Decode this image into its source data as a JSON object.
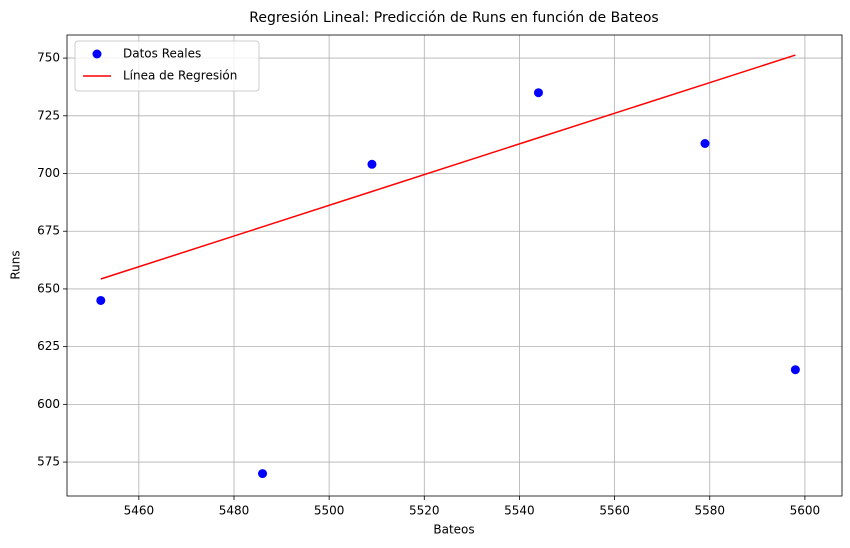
{
  "chart_data": {
    "type": "scatter",
    "title": "Regresión Lineal: Predicción de Runs en función de Bateos",
    "x_label": "Bateos",
    "y_label": "Runs",
    "series": [
      {
        "name": "Datos Reales",
        "type": "scatter",
        "color": "#0000ff",
        "x": [
          5452,
          5486,
          5509,
          5544,
          5579,
          5598
        ],
        "values": [
          645,
          570,
          704,
          735,
          713,
          615
        ]
      },
      {
        "name": "Línea de Regresión",
        "type": "line",
        "color": "#ff0000",
        "x": [
          5452,
          5486,
          5509,
          5544,
          5579,
          5598
        ],
        "values": [
          654.3,
          676.9,
          692.2,
          715.5,
          738.7,
          751.3
        ]
      }
    ],
    "xlim": [
      5444.9,
      5607.8
    ],
    "xticks": [
      5460,
      5480,
      5500,
      5520,
      5540,
      5560,
      5580,
      5600
    ],
    "ylim": [
      560.3,
      760
    ],
    "yticks": [
      575,
      600,
      625,
      650,
      675,
      700,
      725,
      750
    ],
    "grid": true,
    "legend": "upper left"
  }
}
